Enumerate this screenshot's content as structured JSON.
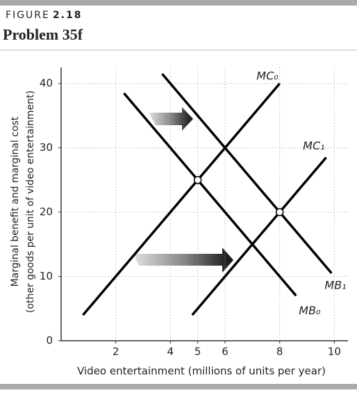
{
  "chart_data": {
    "type": "line",
    "figure": "FIGURE",
    "figure_number": "2.18",
    "title": "Problem 35f",
    "xlabel": "Video entertainment (millions of units per year)",
    "ylabel": [
      "Marginal benefit and marginal cost",
      "(other goods per unit of video entertainment)"
    ],
    "xlim": [
      0,
      10.5
    ],
    "ylim": [
      0,
      42.5
    ],
    "xticks": [
      2,
      4,
      5,
      6,
      8,
      10
    ],
    "yticks": [
      0,
      10,
      20,
      30,
      40
    ],
    "grid": true,
    "series": [
      {
        "name": "MC₀",
        "color": "#000000",
        "x": [
          0.8,
          8
        ],
        "values": [
          4,
          40
        ]
      },
      {
        "name": "MC₁",
        "color": "#000000",
        "x": [
          4.8,
          9.7
        ],
        "values": [
          4,
          28.5
        ]
      },
      {
        "name": "MB₀",
        "color": "#000000",
        "x": [
          2.3,
          8.6
        ],
        "values": [
          38.5,
          7
        ]
      },
      {
        "name": "MB₁",
        "color": "#000000",
        "x": [
          3.7,
          9.9
        ],
        "values": [
          41.5,
          10.5
        ]
      }
    ],
    "points": {
      "x": [
        5,
        8
      ],
      "values": [
        25,
        20
      ]
    }
  }
}
